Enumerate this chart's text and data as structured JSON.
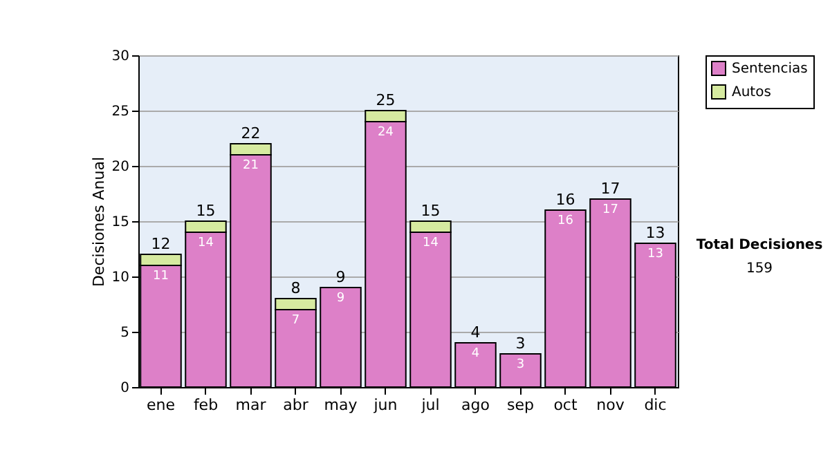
{
  "chart_data": {
    "type": "bar",
    "stacked": true,
    "ylabel": "Decisiones Anual",
    "categories": [
      "ene",
      "feb",
      "mar",
      "abr",
      "may",
      "jun",
      "jul",
      "ago",
      "sep",
      "oct",
      "nov",
      "dic"
    ],
    "series": [
      {
        "name": "Sentencias",
        "color": "#dd80c8",
        "values": [
          11,
          14,
          21,
          7,
          9,
          24,
          14,
          4,
          3,
          16,
          17,
          13
        ],
        "value_labels": [
          "11",
          "14",
          "21",
          "7",
          "9",
          "24",
          "14",
          "4",
          "3",
          "16",
          "17",
          "13"
        ]
      },
      {
        "name": "Autos",
        "color": "#d6eaa0",
        "values": [
          1,
          1,
          1,
          1,
          0,
          1,
          1,
          0,
          0,
          0,
          0,
          0
        ]
      }
    ],
    "totals": [
      "12",
      "15",
      "22",
      "8",
      "9",
      "25",
      "15",
      "4",
      "3",
      "16",
      "17",
      "13"
    ],
    "ylim": [
      0,
      30
    ],
    "yticks": [
      0,
      5,
      10,
      15,
      20,
      25,
      30
    ],
    "grid": "y",
    "legend": "right",
    "annotations": [
      "Total Decisiones",
      "159"
    ]
  }
}
